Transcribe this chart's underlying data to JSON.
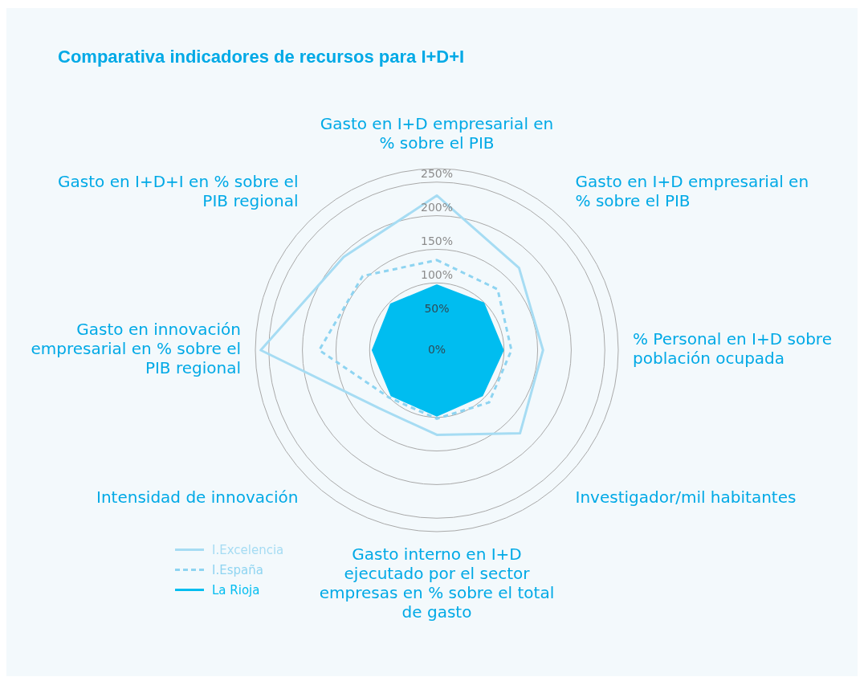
{
  "chart_data": {
    "type": "radar",
    "title": "Comparativa indicadores de recursos para I+D+I",
    "categories": [
      "Gasto en I+D empresarial en % sobre el PIB",
      "Gasto en I+D empresarial en % sobre el PIB",
      "% Personal en I+D sobre población ocupada",
      "Investigador/mil habitantes",
      "Gasto interno en I+D ejecutado por el sector empresas en % sobre el total de gasto",
      "Intensidad de innovación",
      "Gasto en innovación empresarial en % sobre el PIB regional",
      "Gasto en I+D+I en % sobre el PIB regional"
    ],
    "series": [
      {
        "name": "I.Excelencia",
        "color": "#a6dcf3",
        "line_style": "solid",
        "values": [
          230,
          173,
          158,
          175,
          126,
          122,
          262,
          196
        ]
      },
      {
        "name": "I.España",
        "color": "#8ed4f1",
        "line_style": "dashed",
        "values": [
          134,
          128,
          111,
          110,
          102,
          100,
          175,
          156
        ]
      },
      {
        "name": "La Rioja",
        "color": "#00bdf0",
        "line_style": "solid",
        "type": "area",
        "values": [
          96,
          98,
          98,
          95,
          97,
          95,
          95,
          96
        ]
      }
    ],
    "ylim": [
      0,
      270
    ],
    "yticks": [
      {
        "value": 0,
        "label": "0%"
      },
      {
        "value": 50,
        "label": "50%"
      },
      {
        "value": 100,
        "label": "100%"
      },
      {
        "value": 150,
        "label": "150%"
      },
      {
        "value": 200,
        "label": "200%"
      },
      {
        "value": 250,
        "label": "250%"
      }
    ],
    "grid": true,
    "legend": "bottom left",
    "marker": "none"
  }
}
